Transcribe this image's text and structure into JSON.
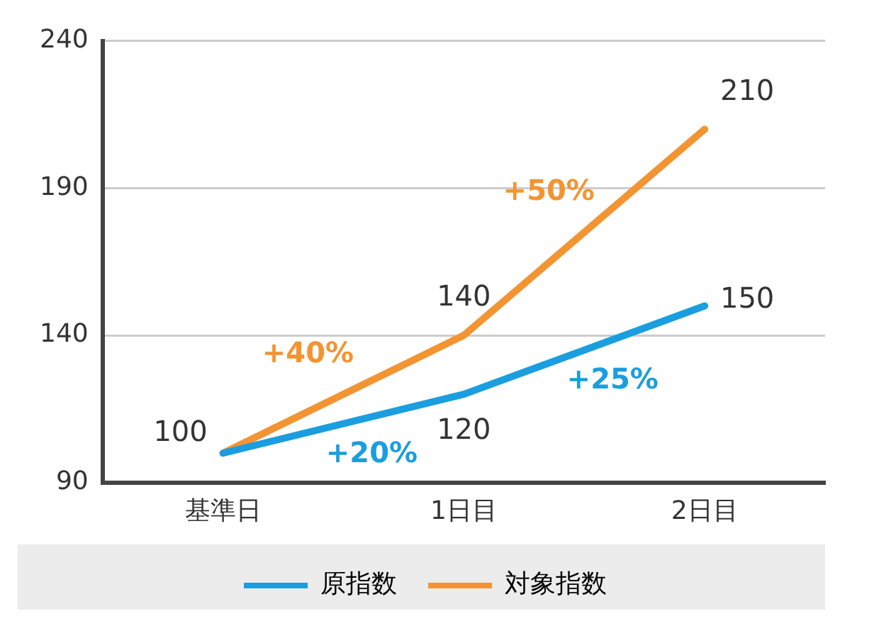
{
  "chart_data": {
    "type": "line",
    "categories": [
      "基準日",
      "1日目",
      "2日目"
    ],
    "series": [
      {
        "name": "原指数",
        "color": "#1a9ee0",
        "values": [
          100,
          120,
          150
        ],
        "value_labels": [
          "100",
          "120",
          "150"
        ]
      },
      {
        "name": "対象指数",
        "color": "#f39432",
        "values": [
          100,
          140,
          210
        ],
        "value_labels": [
          null,
          "140",
          "210"
        ]
      }
    ],
    "ylim": [
      90,
      240
    ],
    "yticks": [
      90,
      140,
      190,
      240
    ],
    "grid": "y",
    "legend": "bottom",
    "marker": "none",
    "line_style": "solid",
    "annotations": [
      "+20%",
      "+25%",
      "+40%",
      "+50%"
    ]
  }
}
